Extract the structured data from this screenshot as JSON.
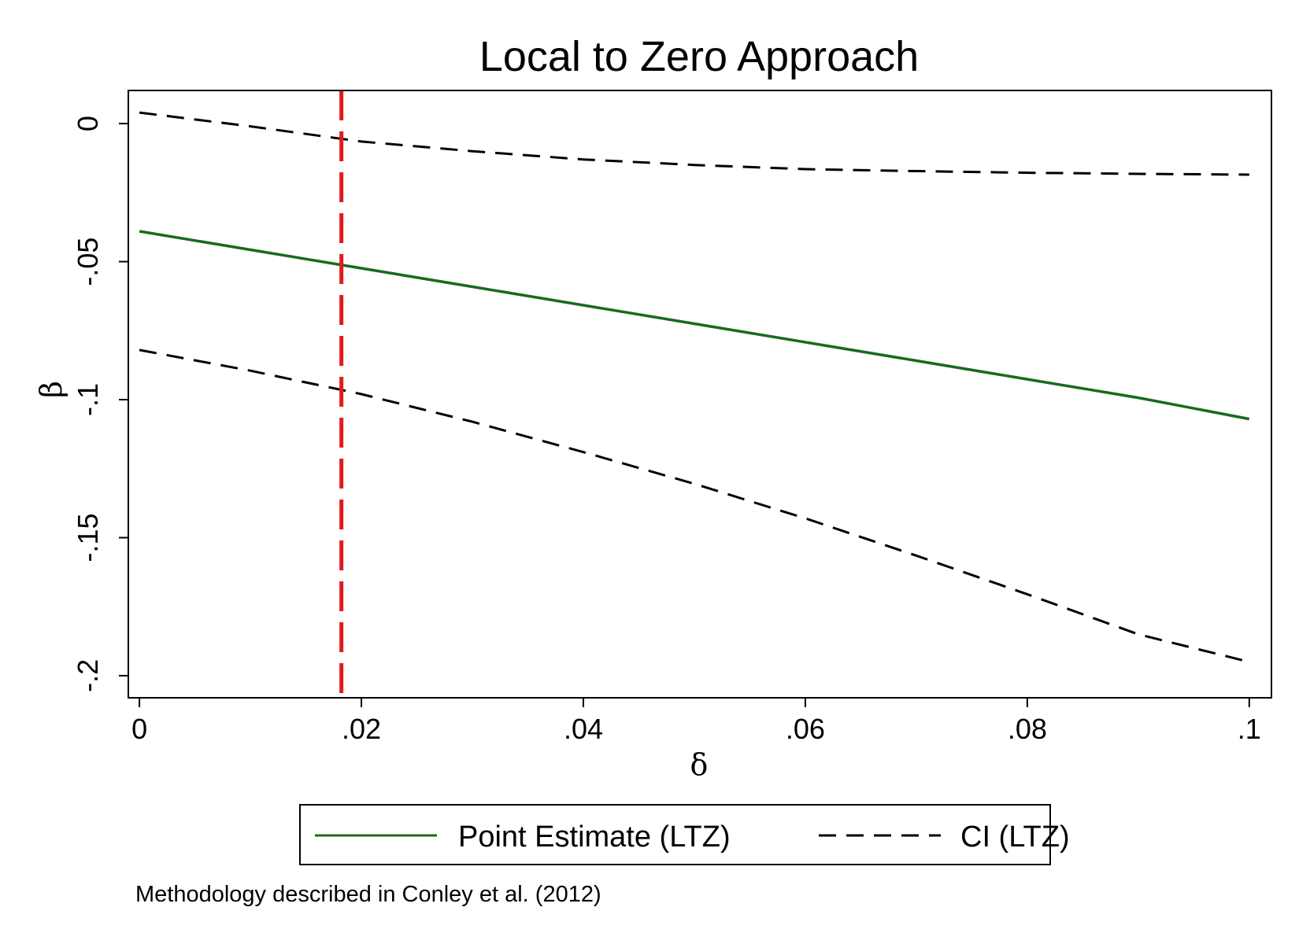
{
  "chart_data": {
    "type": "line",
    "title": "Local to Zero Approach",
    "xlabel": "δ",
    "ylabel": "β",
    "xlim": [
      -0.001,
      0.102
    ],
    "ylim": [
      -0.208,
      0.012
    ],
    "x_ticks": [
      0,
      0.02,
      0.04,
      0.06,
      0.08,
      0.1
    ],
    "x_tick_labels": [
      "0",
      ".02",
      ".04",
      ".06",
      ".08",
      ".1"
    ],
    "y_ticks": [
      0,
      -0.05,
      -0.1,
      -0.15,
      -0.2
    ],
    "y_tick_labels": [
      "0",
      "-.05",
      "-.1",
      "-.15",
      "-.2"
    ],
    "grid": false,
    "legend_position": "bottom",
    "x": [
      0,
      0.01,
      0.02,
      0.03,
      0.04,
      0.05,
      0.06,
      0.07,
      0.08,
      0.09,
      0.1
    ],
    "series": [
      {
        "name": "Point Estimate (LTZ)",
        "color": "#1a6b1a",
        "style": "solid",
        "values": [
          -0.039,
          -0.0457,
          -0.0524,
          -0.0591,
          -0.0658,
          -0.0725,
          -0.0792,
          -0.0859,
          -0.0926,
          -0.0993,
          -0.107
        ]
      },
      {
        "name": "CI (LTZ)",
        "color": "#000000",
        "style": "dashed",
        "show_in_legend": true,
        "values": [
          0.004,
          -0.001,
          -0.0065,
          -0.01,
          -0.013,
          -0.015,
          -0.0165,
          -0.0172,
          -0.0178,
          -0.0182,
          -0.0185
        ]
      },
      {
        "name": "",
        "color": "#000000",
        "style": "dashed",
        "show_in_legend": false,
        "values": [
          -0.082,
          -0.0895,
          -0.098,
          -0.108,
          -0.119,
          -0.1305,
          -0.143,
          -0.1565,
          -0.1705,
          -0.185,
          -0.195
        ]
      }
    ],
    "reference_line": {
      "axis": "x",
      "value": 0.0182,
      "color": "#e31a1c",
      "style": "dashed"
    },
    "note": "Methodology described in Conley et al. (2012)"
  }
}
